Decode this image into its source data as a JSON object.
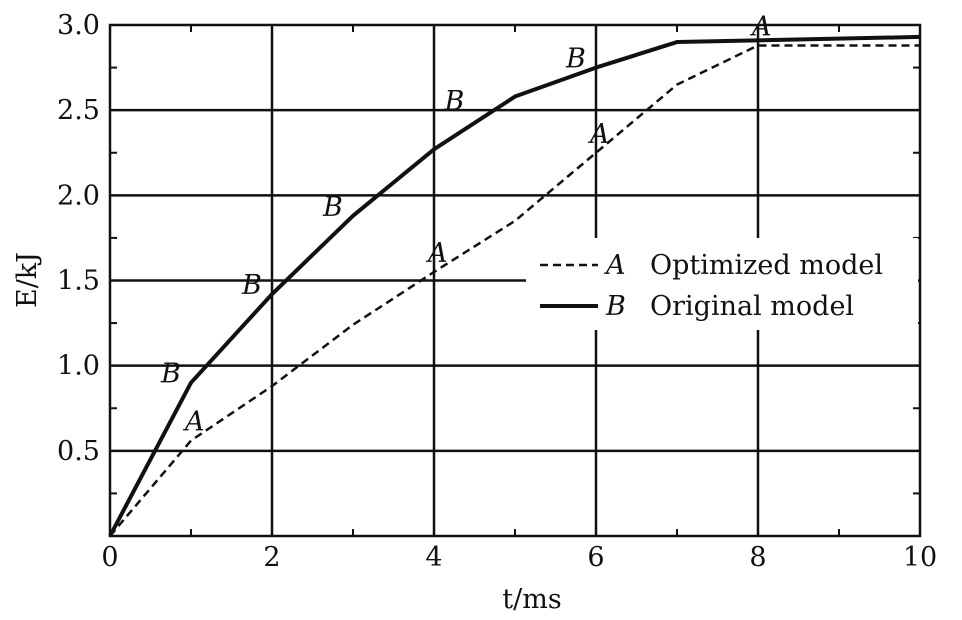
{
  "chart_data": {
    "type": "line",
    "title": "",
    "xlabel": "t/ms",
    "ylabel": "E/kJ",
    "xlim": [
      0,
      10
    ],
    "ylim": [
      0,
      3.0
    ],
    "x_ticks": [
      0,
      2,
      4,
      6,
      8,
      10
    ],
    "y_ticks": [
      0.5,
      1.0,
      1.5,
      2.0,
      2.5,
      3.0
    ],
    "x_tick_labels": [
      "0",
      "2",
      "4",
      "6",
      "8",
      "10"
    ],
    "y_tick_labels": [
      "0.5",
      "1.0",
      "1.5",
      "2.0",
      "2.5",
      "3.0"
    ],
    "grid": true,
    "legend_position": "right-center",
    "series": [
      {
        "name": "Optimized model",
        "letter": "A",
        "style": "dashed",
        "color": "#111111",
        "x": [
          0,
          1,
          2,
          3,
          4,
          5,
          6,
          7,
          8,
          10
        ],
        "y": [
          0,
          0.56,
          0.88,
          1.24,
          1.55,
          1.85,
          2.25,
          2.65,
          2.88,
          2.88
        ],
        "label_points": [
          [
            1,
            0.56
          ],
          [
            4,
            1.55
          ],
          [
            6,
            2.25
          ],
          [
            8,
            2.88
          ]
        ]
      },
      {
        "name": "Original model",
        "letter": "B",
        "style": "solid",
        "color": "#111111",
        "x": [
          0,
          1,
          2,
          3,
          4,
          5,
          6,
          7,
          10
        ],
        "y": [
          0,
          0.9,
          1.42,
          1.88,
          2.27,
          2.58,
          2.75,
          2.9,
          2.93
        ],
        "label_points": [
          [
            1,
            0.9
          ],
          [
            2,
            1.42
          ],
          [
            3,
            1.88
          ],
          [
            4.5,
            2.5
          ],
          [
            6,
            2.75
          ]
        ]
      }
    ]
  }
}
